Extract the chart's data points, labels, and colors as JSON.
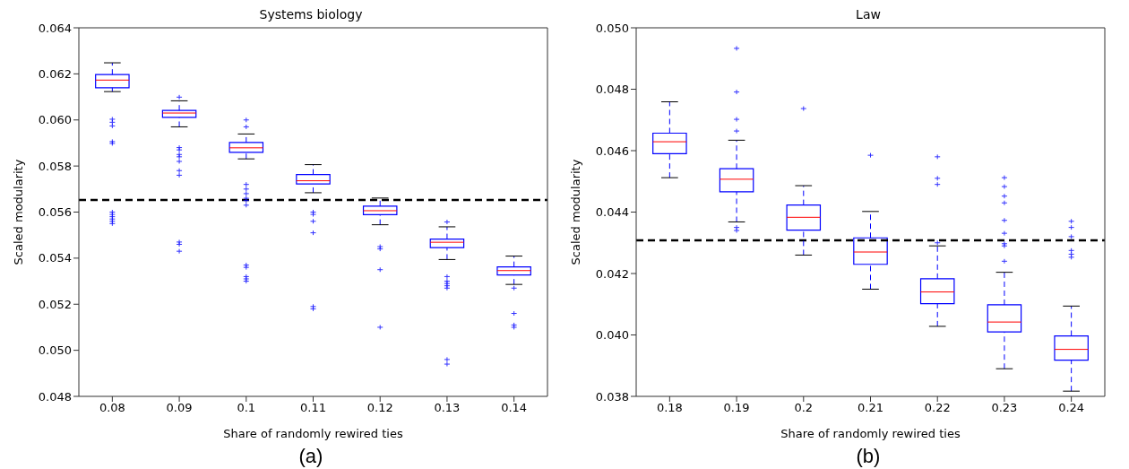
{
  "chart_data": [
    {
      "type": "box",
      "title": "Systems biology",
      "xlabel": "Share of randomly rewired ties",
      "ylabel": "Scaled modularity",
      "color": "#0000ff",
      "categories": [
        "0.08",
        "0.09",
        "0.1",
        "0.11",
        "0.12",
        "0.13",
        "0.14"
      ],
      "boxes": [
        {
          "low": 0.06123,
          "q1": 0.0614,
          "median": 0.06173,
          "q3": 0.06197,
          "high": 0.06248,
          "outliers": [
            0.06003,
            0.0599,
            0.05974,
            0.05906,
            0.05898,
            0.056,
            0.0559,
            0.0558,
            0.0557,
            0.0556,
            0.0555
          ]
        },
        {
          "low": 0.0597,
          "q1": 0.06011,
          "median": 0.0603,
          "q3": 0.06041,
          "high": 0.06083,
          "outliers": [
            0.06099,
            0.0588,
            0.0587,
            0.0585,
            0.0584,
            0.0582,
            0.0578,
            0.0576,
            0.0547,
            0.0546,
            0.0543
          ]
        },
        {
          "low": 0.05831,
          "q1": 0.05859,
          "median": 0.05879,
          "q3": 0.05902,
          "high": 0.05939,
          "outliers": [
            0.06,
            0.0597,
            0.0572,
            0.057,
            0.0568,
            0.0566,
            0.0565,
            0.0563,
            0.0537,
            0.0536,
            0.0532,
            0.0531,
            0.053
          ]
        },
        {
          "low": 0.05684,
          "q1": 0.05722,
          "median": 0.05736,
          "q3": 0.05763,
          "high": 0.05806,
          "outliers": [
            0.056,
            0.0559,
            0.0556,
            0.0551,
            0.0519,
            0.0518
          ]
        },
        {
          "low": 0.05545,
          "q1": 0.05589,
          "median": 0.05606,
          "q3": 0.05626,
          "high": 0.05661,
          "outliers": [
            0.0545,
            0.0544,
            0.0535,
            0.051
          ]
        },
        {
          "low": 0.05394,
          "q1": 0.05446,
          "median": 0.05469,
          "q3": 0.05483,
          "high": 0.05536,
          "outliers": [
            0.05557,
            0.0532,
            0.053,
            0.0529,
            0.0528,
            0.0527,
            0.0496,
            0.0494
          ]
        },
        {
          "low": 0.05286,
          "q1": 0.05327,
          "median": 0.05346,
          "q3": 0.05362,
          "high": 0.05409,
          "outliers": [
            0.0527,
            0.0516,
            0.0511,
            0.051
          ]
        }
      ],
      "ylim": [
        0.048,
        0.064
      ],
      "yticks": [
        {
          "value": 0.048,
          "label": "0.048"
        },
        {
          "value": 0.05,
          "label": "0.050"
        },
        {
          "value": 0.052,
          "label": "0.052"
        },
        {
          "value": 0.054,
          "label": "0.054"
        },
        {
          "value": 0.056,
          "label": "0.056"
        },
        {
          "value": 0.058,
          "label": "0.058"
        },
        {
          "value": 0.06,
          "label": "0.060"
        },
        {
          "value": 0.062,
          "label": "0.062"
        },
        {
          "value": 0.064,
          "label": "0.064"
        }
      ],
      "ref_lines": [
        {
          "axis": "y",
          "value": 0.05653,
          "color": "#000000",
          "line_style": "dashed"
        }
      ],
      "annotations": [
        "(a)"
      ]
    },
    {
      "type": "box",
      "title": "Law",
      "xlabel": "Share of randomly rewired ties",
      "ylabel": "Scaled modularity",
      "color": "#0000ff",
      "categories": [
        "0.18",
        "0.19",
        "0.2",
        "0.21",
        "0.22",
        "0.23",
        "0.24"
      ],
      "boxes": [
        {
          "low": 0.04512,
          "q1": 0.0459,
          "median": 0.04629,
          "q3": 0.04657,
          "high": 0.04759
        },
        {
          "low": 0.04368,
          "q1": 0.04466,
          "median": 0.04507,
          "q3": 0.04541,
          "high": 0.04634,
          "outliers": [
            0.04933,
            0.04791,
            0.04702,
            0.04664,
            0.0435,
            0.0434
          ]
        },
        {
          "low": 0.0426,
          "q1": 0.04341,
          "median": 0.04383,
          "q3": 0.04423,
          "high": 0.04486,
          "outliers": [
            0.04737
          ]
        },
        {
          "low": 0.04149,
          "q1": 0.0423,
          "median": 0.0427,
          "q3": 0.04316,
          "high": 0.04402,
          "outliers": [
            0.04585
          ]
        },
        {
          "low": 0.04028,
          "q1": 0.04102,
          "median": 0.0414,
          "q3": 0.04183,
          "high": 0.0429,
          "outliers": [
            0.0458,
            0.0451,
            0.0449,
            0.043
          ]
        },
        {
          "low": 0.0389,
          "q1": 0.0401,
          "median": 0.04042,
          "q3": 0.04098,
          "high": 0.04204,
          "outliers": [
            0.04512,
            0.04483,
            0.04452,
            0.0443,
            0.04373,
            0.04331,
            0.04297,
            0.0429,
            0.0424
          ]
        },
        {
          "low": 0.03817,
          "q1": 0.03918,
          "median": 0.03953,
          "q3": 0.03997,
          "high": 0.04094,
          "outliers": [
            0.0437,
            0.0435,
            0.0432,
            0.04275,
            0.04263,
            0.04253
          ]
        }
      ],
      "ylim": [
        0.038,
        0.05
      ],
      "yticks": [
        {
          "value": 0.038,
          "label": "0.038"
        },
        {
          "value": 0.04,
          "label": "0.040"
        },
        {
          "value": 0.042,
          "label": "0.042"
        },
        {
          "value": 0.044,
          "label": "0.044"
        },
        {
          "value": 0.046,
          "label": "0.046"
        },
        {
          "value": 0.048,
          "label": "0.048"
        },
        {
          "value": 0.05,
          "label": "0.050"
        }
      ],
      "ref_lines": [
        {
          "axis": "y",
          "value": 0.04308,
          "color": "#000000",
          "line_style": "dashed"
        }
      ],
      "annotations": [
        "(b)"
      ]
    }
  ]
}
